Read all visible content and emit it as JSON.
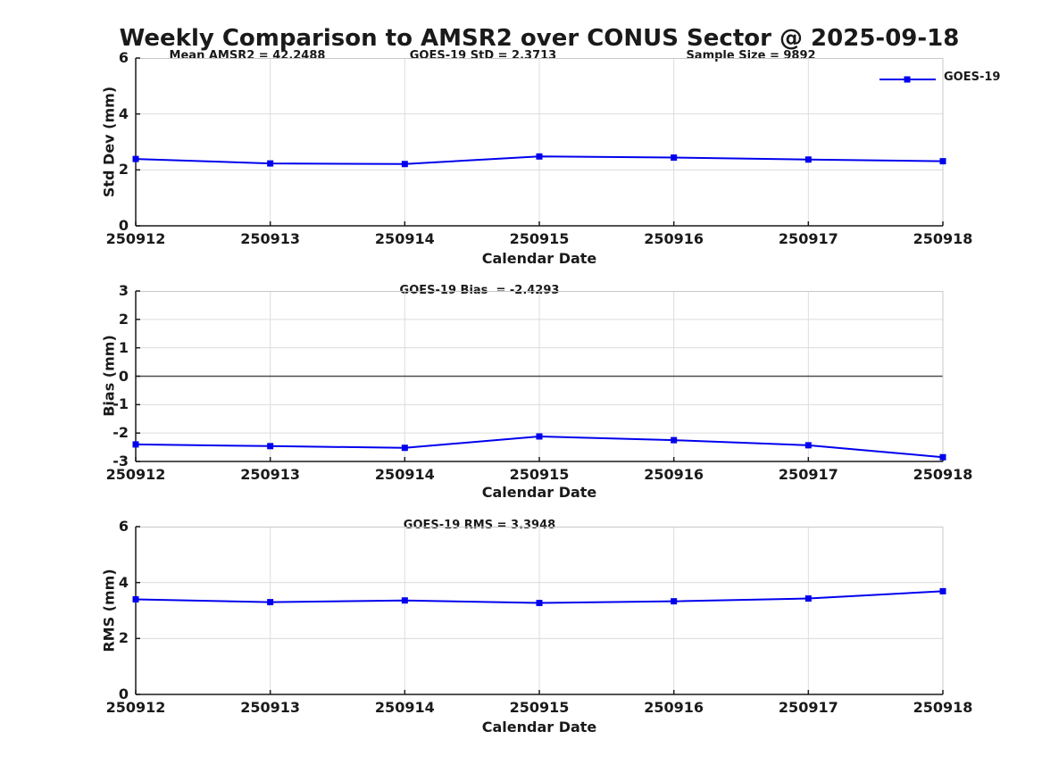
{
  "figure": {
    "title": "Weekly Comparison to AMSR2 over CONUS Sector @ 2025-09-18",
    "legend": {
      "label": "GOES-19",
      "color": "#0000EE",
      "marker": "square"
    },
    "background": "#ffffff",
    "grid_color": "#dcdcdc",
    "axis_color": "#1a1a1a"
  },
  "chart_data": [
    {
      "type": "line",
      "ylabel": "Std Dev (mm)",
      "xlabel": "Calendar Date",
      "ylim": [
        0,
        6
      ],
      "yticks": [
        0,
        2,
        4,
        6
      ],
      "grid": true,
      "legend_position": "top-right-outside",
      "categories": [
        "250912",
        "250913",
        "250914",
        "250915",
        "250916",
        "250917",
        "250918"
      ],
      "series": [
        {
          "name": "GOES-19",
          "color": "#0000EE",
          "marker": "square",
          "values": [
            2.39,
            2.23,
            2.21,
            2.48,
            2.44,
            2.37,
            2.31
          ]
        }
      ],
      "annotations": [
        {
          "text": "Mean AMSR2 = 42.2488"
        },
        {
          "text": "GOES-19 StD = 2.3713"
        },
        {
          "text": "Sample Size = 9892"
        }
      ]
    },
    {
      "type": "line",
      "ylabel": "Bias (mm)",
      "xlabel": "Calendar Date",
      "ylim": [
        -3,
        3
      ],
      "yticks": [
        -3,
        -2,
        -1,
        0,
        1,
        2,
        3
      ],
      "grid": true,
      "zero_line": true,
      "categories": [
        "250912",
        "250913",
        "250914",
        "250915",
        "250916",
        "250917",
        "250918"
      ],
      "series": [
        {
          "name": "GOES-19",
          "color": "#0000EE",
          "marker": "square",
          "values": [
            -2.4,
            -2.46,
            -2.52,
            -2.12,
            -2.25,
            -2.43,
            -2.85
          ]
        }
      ],
      "annotations": [
        {
          "text": "GOES-19 Bias  = -2.4293"
        }
      ]
    },
    {
      "type": "line",
      "ylabel": "RMS (mm)",
      "xlabel": "Calendar Date",
      "ylim": [
        0,
        6
      ],
      "yticks": [
        0,
        2,
        4,
        6
      ],
      "grid": true,
      "categories": [
        "250912",
        "250913",
        "250914",
        "250915",
        "250916",
        "250917",
        "250918"
      ],
      "series": [
        {
          "name": "GOES-19",
          "color": "#0000EE",
          "marker": "square",
          "values": [
            3.4,
            3.3,
            3.36,
            3.27,
            3.33,
            3.43,
            3.69
          ]
        }
      ],
      "annotations": [
        {
          "text": "GOES-19 RMS = 3.3948"
        }
      ]
    }
  ]
}
